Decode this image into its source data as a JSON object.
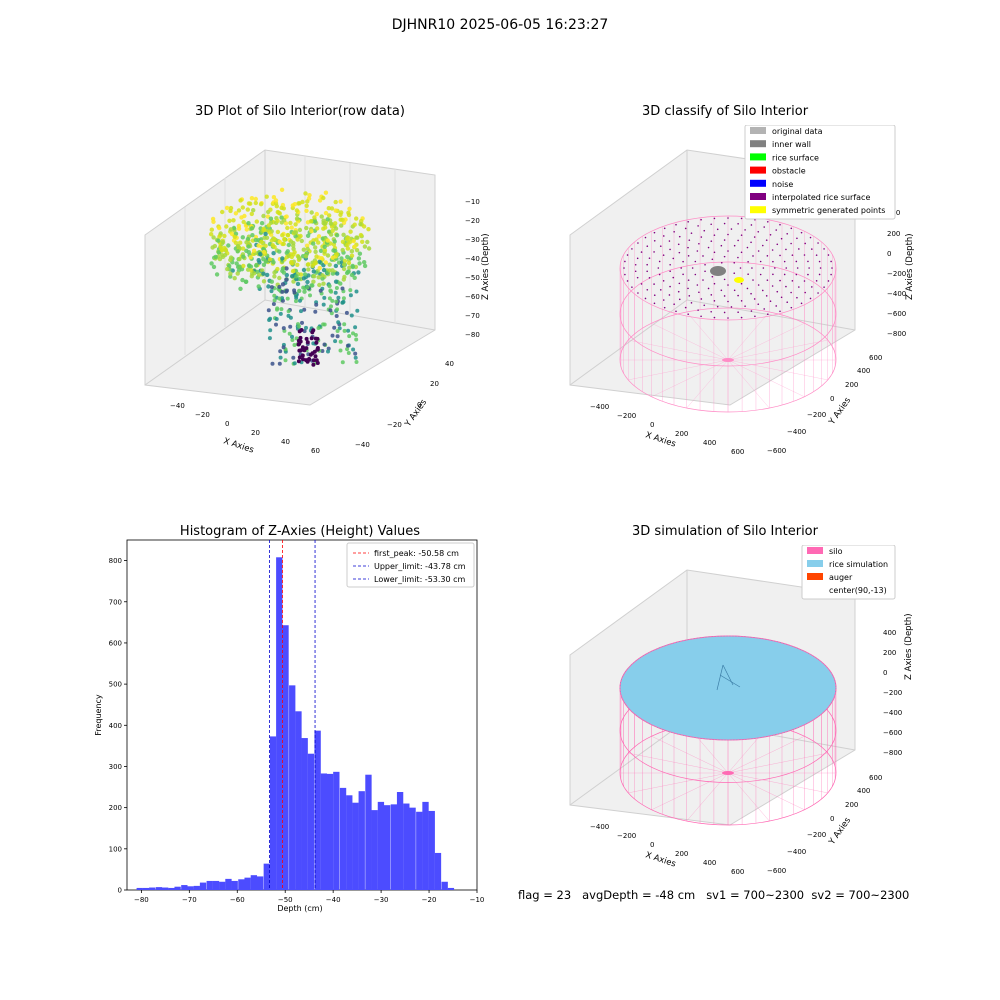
{
  "figure": {
    "suptitle": "DJHNR10 2025-06-05 16:23:27",
    "status_line": "flag = 23   avgDepth = -48 cm   sv1 = 700~2300  sv2 = 700~2300"
  },
  "colors": {
    "histogram_bar": "#4c4cff",
    "peak_line": "#ff0000",
    "limit_line": "#0000cc",
    "silo": "#ff69b4",
    "rice_simulation": "#87ceeb",
    "auger": "#ff4500"
  },
  "panels": {
    "raw": {
      "title": "3D Plot of Silo Interior(row data)",
      "xlabel": "X Axies",
      "ylabel": "Y Axies",
      "zlabel": "Z Axies (Depth)",
      "x_ticks": [
        "−40",
        "−20",
        "0",
        "20",
        "40",
        "60"
      ],
      "y_ticks": [
        "−40",
        "−20",
        "0",
        "20",
        "40"
      ],
      "z_ticks": [
        "−10",
        "−20",
        "−30",
        "−40",
        "−50",
        "−60",
        "−70",
        "−80"
      ]
    },
    "classify": {
      "title": "3D classify of Silo Interior",
      "xlabel": "X Axies",
      "ylabel": "Y Axies",
      "zlabel": "Z Axies (Depth)",
      "x_ticks": [
        "−400",
        "−200",
        "0",
        "200",
        "400",
        "600"
      ],
      "y_ticks": [
        "−600",
        "−400",
        "−200",
        "0",
        "200",
        "400",
        "600"
      ],
      "z_ticks": [
        "400",
        "200",
        "0",
        "−200",
        "−400",
        "−600",
        "−800"
      ],
      "legend": [
        {
          "label": "original data",
          "color": "#b3b3b3"
        },
        {
          "label": "inner wall",
          "color": "#808080"
        },
        {
          "label": "rice surface",
          "color": "#00ff00"
        },
        {
          "label": "obstacle",
          "color": "#ff0000"
        },
        {
          "label": "noise",
          "color": "#0000ff"
        },
        {
          "label": "interpolated rice surface",
          "color": "#800080"
        },
        {
          "label": "symmetric generated points",
          "color": "#ffff00"
        }
      ]
    },
    "simulation": {
      "title": "3D simulation of Silo Interior",
      "xlabel": "X Axies",
      "ylabel": "Y Axies",
      "zlabel": "Z Axies (Depth)",
      "x_ticks": [
        "−400",
        "−200",
        "0",
        "200",
        "400",
        "600"
      ],
      "y_ticks": [
        "−600",
        "−400",
        "−200",
        "0",
        "200",
        "400",
        "600"
      ],
      "z_ticks": [
        "400",
        "200",
        "0",
        "−200",
        "−400",
        "−600",
        "−800"
      ],
      "legend": [
        {
          "label": "silo",
          "color": "#ff69b4"
        },
        {
          "label": "rice simulation",
          "color": "#87ceeb"
        },
        {
          "label": "auger",
          "color": "#ff4500"
        },
        {
          "label": "center(90,-13)",
          "color": "none"
        }
      ]
    }
  },
  "chart_data": {
    "type": "bar",
    "title": "Histogram of Z-Axies (Height) Values",
    "xlabel": "Depth (cm)",
    "ylabel": "Frequency",
    "xlim": [
      -83,
      -10
    ],
    "ylim": [
      0,
      850
    ],
    "x_ticks": [
      -80,
      -70,
      -60,
      -50,
      -40,
      -30,
      -20,
      -10
    ],
    "y_ticks": [
      0,
      100,
      200,
      300,
      400,
      500,
      600,
      700,
      800
    ],
    "bin_width": 1.32,
    "bins": [
      [
        -81.0,
        5
      ],
      [
        -79.7,
        5
      ],
      [
        -78.4,
        6
      ],
      [
        -77.0,
        7
      ],
      [
        -75.7,
        6
      ],
      [
        -74.4,
        5
      ],
      [
        -73.1,
        8
      ],
      [
        -71.7,
        12
      ],
      [
        -70.4,
        9
      ],
      [
        -69.1,
        10
      ],
      [
        -67.8,
        18
      ],
      [
        -66.4,
        22
      ],
      [
        -65.1,
        22
      ],
      [
        -63.8,
        20
      ],
      [
        -62.5,
        27
      ],
      [
        -61.2,
        22
      ],
      [
        -59.8,
        26
      ],
      [
        -58.5,
        30
      ],
      [
        -57.2,
        36
      ],
      [
        -55.9,
        33
      ],
      [
        -54.5,
        64
      ],
      [
        -53.2,
        373
      ],
      [
        -51.9,
        808
      ],
      [
        -50.6,
        643
      ],
      [
        -49.2,
        497
      ],
      [
        -47.9,
        434
      ],
      [
        -46.6,
        369
      ],
      [
        -45.3,
        331
      ],
      [
        -43.9,
        387
      ],
      [
        -42.6,
        283
      ],
      [
        -41.3,
        282
      ],
      [
        -40.0,
        287
      ],
      [
        -38.6,
        248
      ],
      [
        -37.3,
        230
      ],
      [
        -36.0,
        212
      ],
      [
        -34.7,
        240
      ],
      [
        -33.3,
        280
      ],
      [
        -32.0,
        194
      ],
      [
        -30.7,
        214
      ],
      [
        -29.4,
        206
      ],
      [
        -28.0,
        208
      ],
      [
        -26.7,
        238
      ],
      [
        -25.4,
        210
      ],
      [
        -24.1,
        200
      ],
      [
        -22.7,
        190
      ],
      [
        -21.4,
        214
      ],
      [
        -20.1,
        192
      ],
      [
        -18.8,
        90
      ],
      [
        -17.4,
        20
      ],
      [
        -16.1,
        5
      ]
    ],
    "vlines": [
      {
        "label": "first_peak: -50.58 cm",
        "x": -50.58,
        "color": "#ff0000"
      },
      {
        "label": "Upper_limit: -43.78 cm",
        "x": -43.78,
        "color": "#0000cc"
      },
      {
        "label": "Lower_limit: -53.30 cm",
        "x": -53.3,
        "color": "#0000cc"
      }
    ],
    "legend_position": "top-right"
  }
}
